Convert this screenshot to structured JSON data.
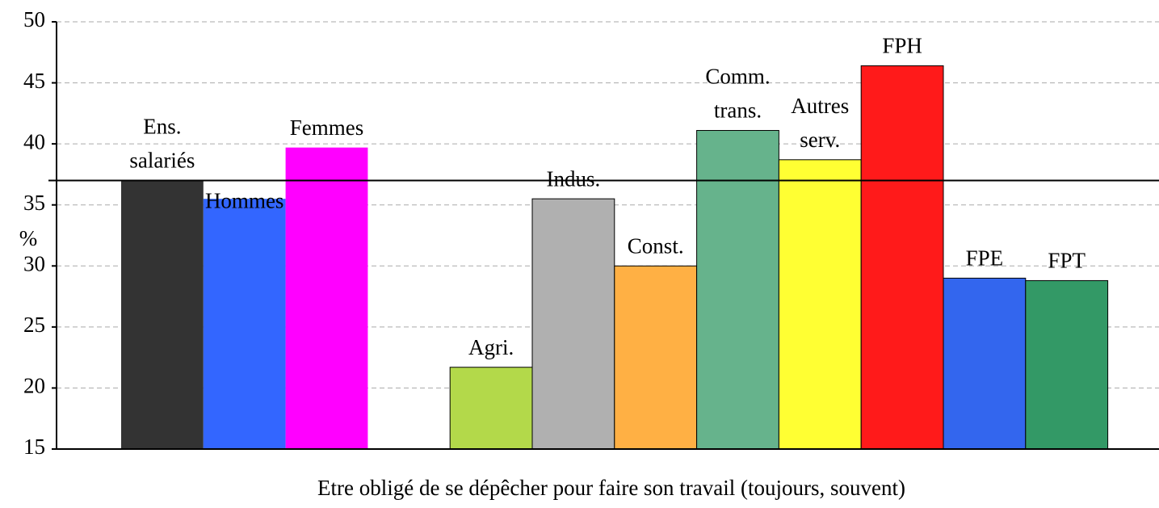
{
  "chart_data": {
    "type": "bar",
    "categories": [
      [
        "Ens.",
        "salariés"
      ],
      [
        "Hommes"
      ],
      [
        "Femmes"
      ],
      [
        "Agri."
      ],
      [
        "Indus."
      ],
      [
        "Const."
      ],
      [
        "Comm.",
        "trans."
      ],
      [
        "Autres",
        "serv."
      ],
      [
        "FPH"
      ],
      [
        "FPE"
      ],
      [
        "FPT"
      ]
    ],
    "values": [
      37,
      35.5,
      39.7,
      21.7,
      35.5,
      30,
      41.1,
      38.7,
      46.4,
      29,
      28.8
    ],
    "colors": [
      "#333333",
      "#3366ff",
      "#ff00ff",
      "#b3d94a",
      "#b0b0b0",
      "#ffb044",
      "#66b38c",
      "#ffff33",
      "#ff1a1a",
      "#3366ee",
      "#339966"
    ],
    "ylabel": "%",
    "xlabel": "Etre obligé de se dépêcher pour faire son travail (toujours, souvent)",
    "ylim": [
      15,
      50
    ],
    "yticks": [
      15,
      20,
      25,
      30,
      35,
      40,
      45,
      50
    ],
    "grid": true,
    "reference_line": 37
  }
}
